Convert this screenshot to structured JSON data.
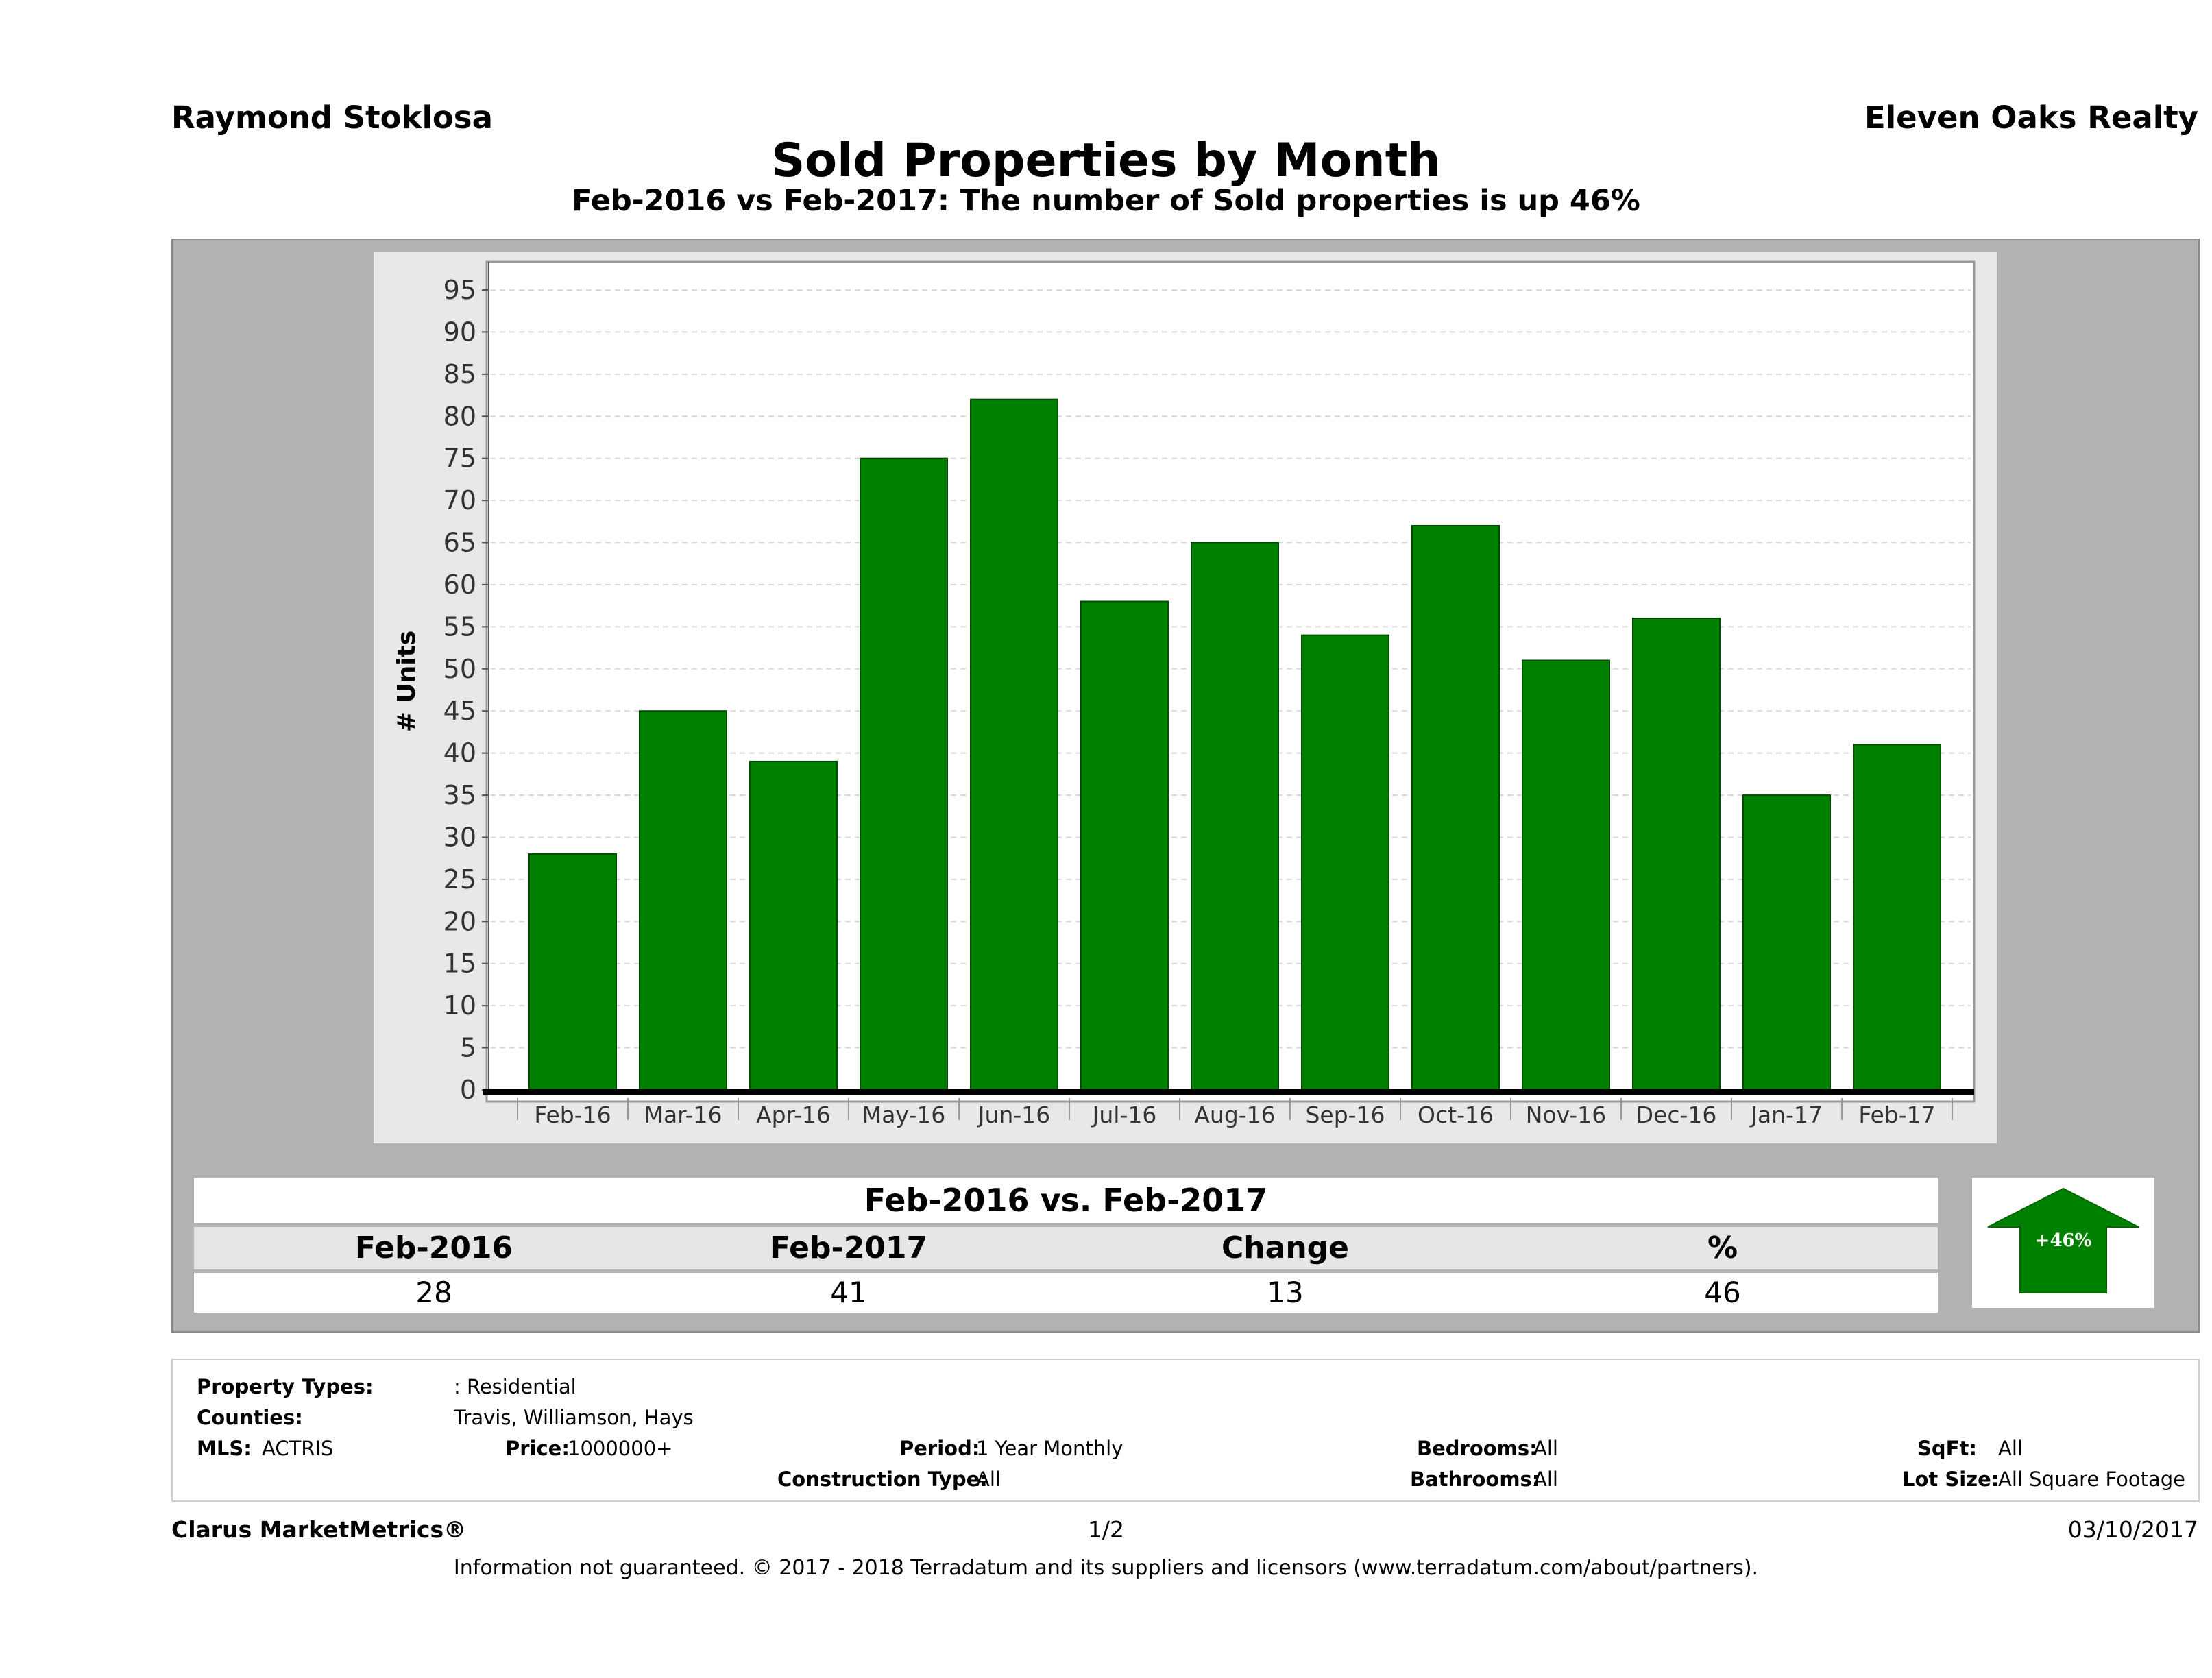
{
  "header": {
    "agent": "Raymond Stoklosa",
    "brokerage": "Eleven Oaks Realty"
  },
  "chart_data": {
    "type": "bar",
    "title": "Sold Properties by Month",
    "subtitle": "Feb-2016 vs Feb-2017: The number of Sold  properties is up 46%",
    "xlabel": "",
    "ylabel": "# Units",
    "categories": [
      "Feb-16",
      "Mar-16",
      "Apr-16",
      "May-16",
      "Jun-16",
      "Jul-16",
      "Aug-16",
      "Sep-16",
      "Oct-16",
      "Nov-16",
      "Dec-16",
      "Jan-17",
      "Feb-17"
    ],
    "values": [
      28,
      45,
      39,
      75,
      82,
      58,
      65,
      54,
      67,
      51,
      56,
      35,
      41
    ],
    "ylim": [
      0,
      95
    ],
    "yticks": [
      0,
      5,
      10,
      15,
      20,
      25,
      30,
      35,
      40,
      45,
      50,
      55,
      60,
      65,
      70,
      75,
      80,
      85,
      90,
      95
    ],
    "grid": true,
    "legend": "none",
    "bar_color": "#008000"
  },
  "comparison": {
    "title": "Feb-2016 vs. Feb-2017",
    "headers": [
      "Feb-2016",
      "Feb-2017",
      "Change",
      "%"
    ],
    "values": [
      "28",
      "41",
      "13",
      "46"
    ],
    "badge": "+46%",
    "badge_color": "#008000"
  },
  "filters": {
    "property_types_label": "Property Types:",
    "property_types_value": ": Residential",
    "counties_label": "Counties:",
    "counties_value": "Travis, Williamson, Hays",
    "mls_label": "MLS:",
    "mls_value": "ACTRIS",
    "price_label": "Price:",
    "price_value": "1000000+",
    "period_label": "Period:",
    "period_value": "1 Year Monthly",
    "construction_label": "Construction Type:",
    "construction_value": "All",
    "bedrooms_label": "Bedrooms:",
    "bedrooms_value": "All",
    "bathrooms_label": "Bathrooms:",
    "bathrooms_value": "All",
    "sqft_label": "SqFt:",
    "sqft_value": "All",
    "lotsize_label": "Lot Size:",
    "lotsize_value": "All Square Footage"
  },
  "footer": {
    "brand": "Clarus MarketMetrics®",
    "page": "1/2",
    "date": "03/10/2017",
    "disclaimer": "Information not guaranteed. © 2017 - 2018 Terradatum and its suppliers and licensors (www.terradatum.com/about/partners)."
  }
}
